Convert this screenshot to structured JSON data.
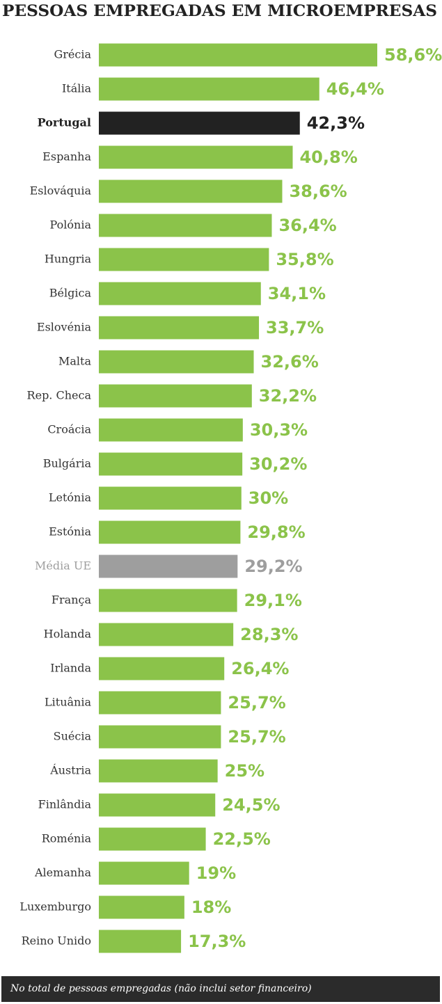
{
  "chart_data": {
    "type": "bar",
    "orientation": "horizontal",
    "title": "PESSOAS EMPREGADAS EM MICROEMPRESAS",
    "categories": [
      "Grécia",
      "Itália",
      "Portugal",
      "Espanha",
      "Eslováquia",
      "Polónia",
      "Hungria",
      "Bélgica",
      "Eslovénia",
      "Malta",
      "Rep. Checa",
      "Croácia",
      "Bulgária",
      "Letónia",
      "Estónia",
      "Média UE",
      "França",
      "Holanda",
      "Irlanda",
      "Lituânia",
      "Suécia",
      "Áustria",
      "Finlândia",
      "Roménia",
      "Alemanha",
      "Luxemburgo",
      "Reino Unido"
    ],
    "values": [
      58.6,
      46.4,
      42.3,
      40.8,
      38.6,
      36.4,
      35.8,
      34.1,
      33.7,
      32.6,
      32.2,
      30.3,
      30.2,
      30,
      29.8,
      29.2,
      29.1,
      28.3,
      26.4,
      25.7,
      25.7,
      25,
      24.5,
      22.5,
      19,
      18,
      17.3
    ],
    "value_labels": [
      "58,6%",
      "46,4%",
      "42,3%",
      "40,8%",
      "38,6%",
      "36,4%",
      "35,8%",
      "34,1%",
      "33,7%",
      "32,6%",
      "32,2%",
      "30,3%",
      "30,2%",
      "30%",
      "29,8%",
      "29,2%",
      "29,1%",
      "28,3%",
      "26,4%",
      "25,7%",
      "25,7%",
      "25%",
      "24,5%",
      "22,5%",
      "19%",
      "18%",
      "17,3%"
    ],
    "color": "#8bc34a",
    "colors": [
      "#8bc34a",
      "#8bc34a",
      "#222222",
      "#8bc34a",
      "#8bc34a",
      "#8bc34a",
      "#8bc34a",
      "#8bc34a",
      "#8bc34a",
      "#8bc34a",
      "#8bc34a",
      "#8bc34a",
      "#8bc34a",
      "#8bc34a",
      "#8bc34a",
      "#9e9e9e",
      "#8bc34a",
      "#8bc34a",
      "#8bc34a",
      "#8bc34a",
      "#8bc34a",
      "#8bc34a",
      "#8bc34a",
      "#8bc34a",
      "#8bc34a",
      "#8bc34a",
      "#8bc34a"
    ],
    "note": "No total de pessoas empregadas (não inclui setor financeiro)"
  }
}
